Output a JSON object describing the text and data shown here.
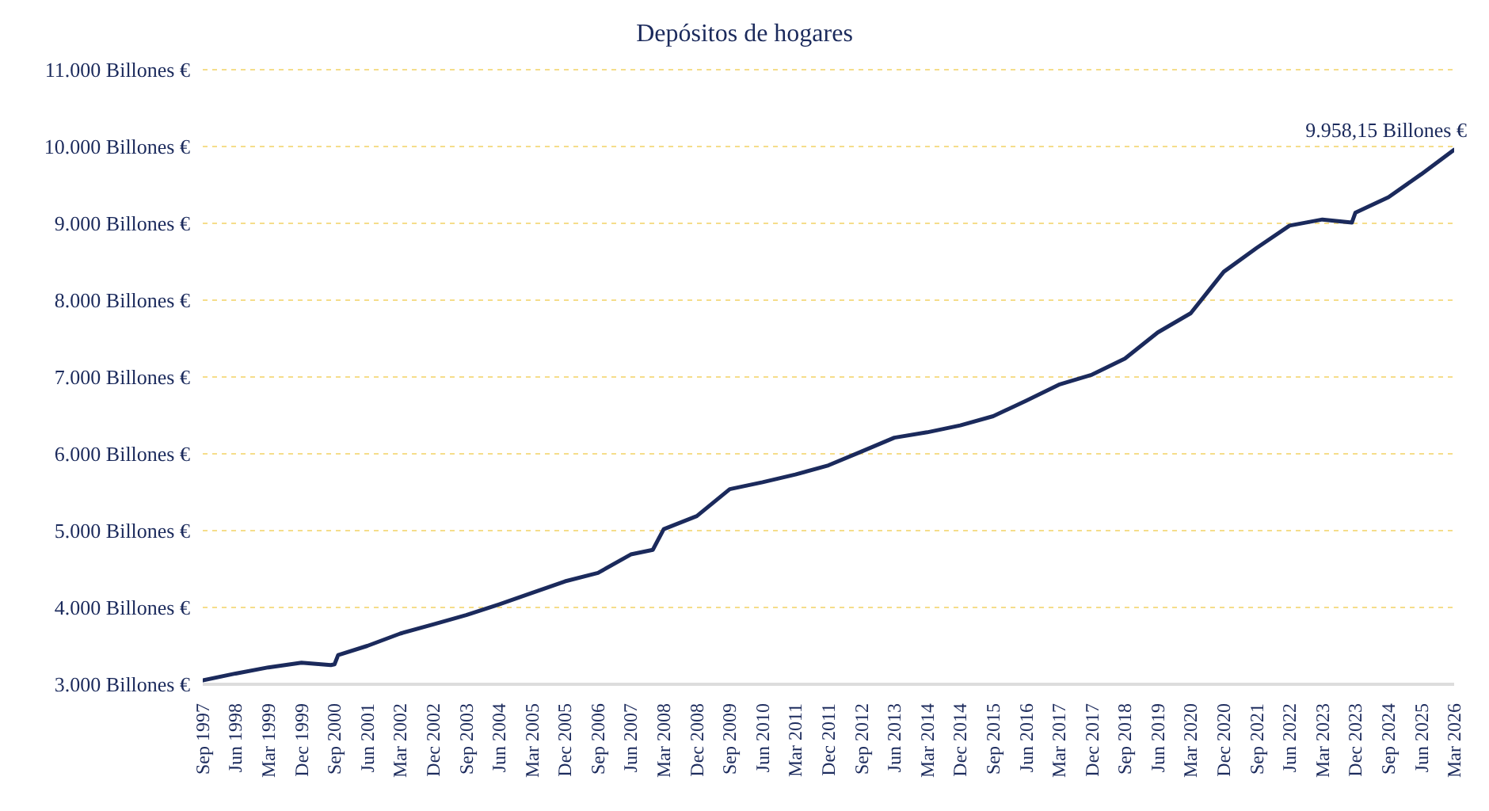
{
  "chart_data": {
    "type": "line",
    "title": "Depósitos de hogares",
    "x": [
      "1997-09",
      "1998-06",
      "1999-03",
      "1999-12",
      "2000-08",
      "2000-09",
      "2000-10",
      "2001-06",
      "2002-03",
      "2002-12",
      "2003-09",
      "2004-06",
      "2005-03",
      "2005-12",
      "2006-09",
      "2007-06",
      "2007-12",
      "2008-03",
      "2008-12",
      "2009-09",
      "2010-06",
      "2011-03",
      "2011-12",
      "2012-09",
      "2013-06",
      "2014-03",
      "2014-12",
      "2015-09",
      "2016-06",
      "2017-03",
      "2017-12",
      "2018-09",
      "2019-06",
      "2020-03",
      "2020-12",
      "2021-09",
      "2022-06",
      "2023-03",
      "2023-11",
      "2023-12",
      "2024-09",
      "2025-06",
      "2026-03"
    ],
    "series": [
      {
        "color": "#1b2a5c",
        "values": [
          3050,
          3140,
          3220,
          3280,
          3250,
          3260,
          3380,
          3500,
          3660,
          3780,
          3900,
          4040,
          4190,
          4340,
          4450,
          4690,
          4750,
          5020,
          5190,
          5540,
          5630,
          5730,
          5850,
          6030,
          6210,
          6280,
          6370,
          6490,
          6690,
          6900,
          7030,
          7240,
          7580,
          7830,
          8370,
          8680,
          8970,
          9050,
          9010,
          9140,
          9340,
          9640,
          9958.15
        ]
      }
    ],
    "ylim": [
      3000,
      11000
    ],
    "yticks": [
      {
        "value": 3000,
        "label": "3.000 Billones €"
      },
      {
        "value": 4000,
        "label": "4.000 Billones €"
      },
      {
        "value": 5000,
        "label": "5.000 Billones €"
      },
      {
        "value": 6000,
        "label": "6.000 Billones €"
      },
      {
        "value": 7000,
        "label": "7.000 Billones €"
      },
      {
        "value": 8000,
        "label": "8.000 Billones €"
      },
      {
        "value": 9000,
        "label": "9.000 Billones €"
      },
      {
        "value": 10000,
        "label": "10.000 Billones €"
      },
      {
        "value": 11000,
        "label": "11.000 Billones €"
      }
    ],
    "xlim": [
      "1997-09",
      "2026-03"
    ],
    "xticks": [
      {
        "value": "1997-09",
        "label": "Sep 1997"
      },
      {
        "value": "1998-06",
        "label": "Jun 1998"
      },
      {
        "value": "1999-03",
        "label": "Mar 1999"
      },
      {
        "value": "1999-12",
        "label": "Dec 1999"
      },
      {
        "value": "2000-09",
        "label": "Sep 2000"
      },
      {
        "value": "2001-06",
        "label": "Jun 2001"
      },
      {
        "value": "2002-03",
        "label": "Mar 2002"
      },
      {
        "value": "2002-12",
        "label": "Dec 2002"
      },
      {
        "value": "2003-09",
        "label": "Sep 2003"
      },
      {
        "value": "2004-06",
        "label": "Jun 2004"
      },
      {
        "value": "2005-03",
        "label": "Mar 2005"
      },
      {
        "value": "2005-12",
        "label": "Dec 2005"
      },
      {
        "value": "2006-09",
        "label": "Sep 2006"
      },
      {
        "value": "2007-06",
        "label": "Jun 2007"
      },
      {
        "value": "2008-03",
        "label": "Mar 2008"
      },
      {
        "value": "2008-12",
        "label": "Dec 2008"
      },
      {
        "value": "2009-09",
        "label": "Sep 2009"
      },
      {
        "value": "2010-06",
        "label": "Jun 2010"
      },
      {
        "value": "2011-03",
        "label": "Mar 2011"
      },
      {
        "value": "2011-12",
        "label": "Dec 2011"
      },
      {
        "value": "2012-09",
        "label": "Sep 2012"
      },
      {
        "value": "2013-06",
        "label": "Jun 2013"
      },
      {
        "value": "2014-03",
        "label": "Mar 2014"
      },
      {
        "value": "2014-12",
        "label": "Dec 2014"
      },
      {
        "value": "2015-09",
        "label": "Sep 2015"
      },
      {
        "value": "2016-06",
        "label": "Jun 2016"
      },
      {
        "value": "2017-03",
        "label": "Mar 2017"
      },
      {
        "value": "2017-12",
        "label": "Dec 2017"
      },
      {
        "value": "2018-09",
        "label": "Sep 2018"
      },
      {
        "value": "2019-06",
        "label": "Jun 2019"
      },
      {
        "value": "2020-03",
        "label": "Mar 2020"
      },
      {
        "value": "2020-12",
        "label": "Dec 2020"
      },
      {
        "value": "2021-09",
        "label": "Sep 2021"
      },
      {
        "value": "2022-06",
        "label": "Jun 2022"
      },
      {
        "value": "2023-03",
        "label": "Mar 2023"
      },
      {
        "value": "2023-12",
        "label": "Dec 2023"
      },
      {
        "value": "2024-09",
        "label": "Sep 2024"
      },
      {
        "value": "2025-06",
        "label": "Jun 2025"
      },
      {
        "value": "2026-03",
        "label": "Mar 2026"
      }
    ],
    "grid": "y",
    "marker": "none",
    "line_style": "solid",
    "annotations": [
      {
        "text": "9.958,15 Billones €",
        "x": "2026-03",
        "y": 9958.15
      }
    ]
  }
}
